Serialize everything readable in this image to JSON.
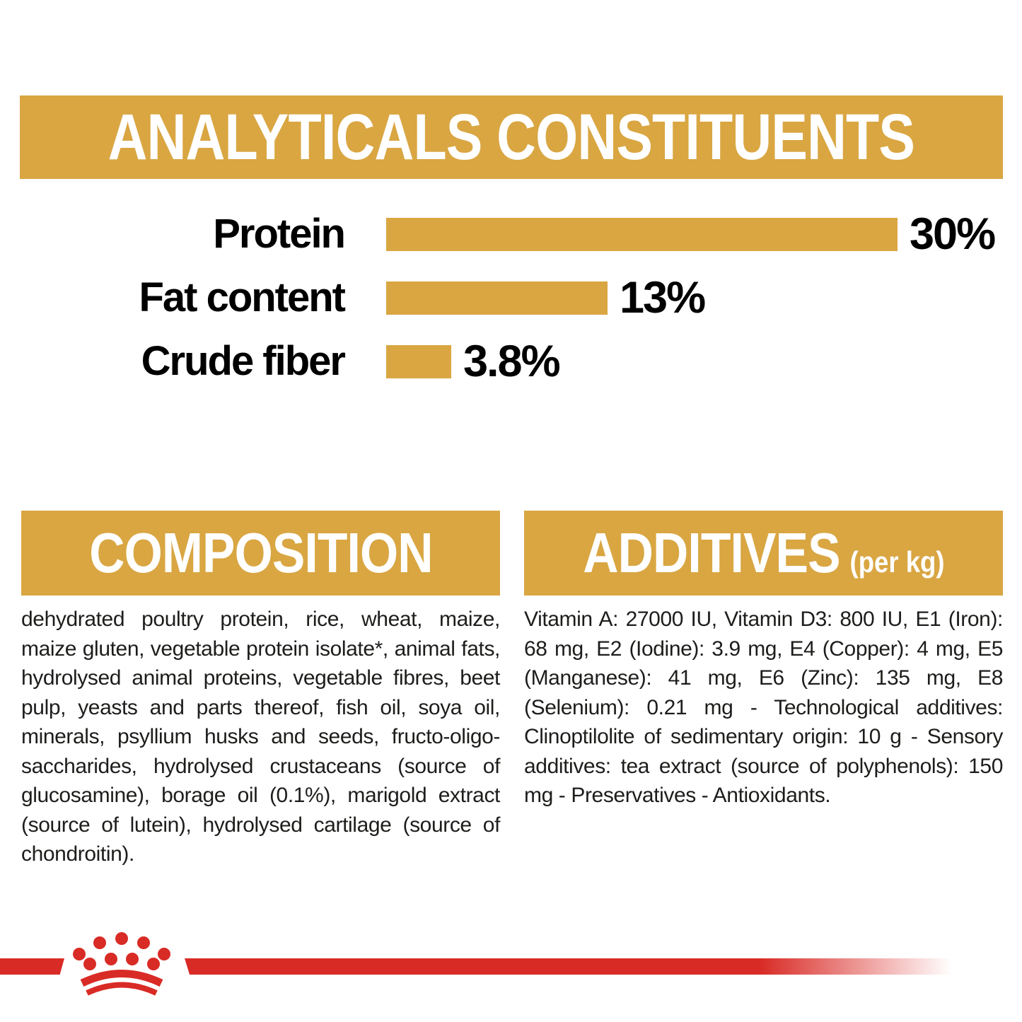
{
  "colors": {
    "gold": "#D9A642",
    "red": "#D92B26",
    "text_dark": "#1D1D1B",
    "banner_text": "#FFFFFF"
  },
  "header": {
    "title": "ANALYTICALS CONSTITUENTS"
  },
  "chart_data": {
    "type": "bar",
    "orientation": "horizontal",
    "title": "ANALYTICALS CONSTITUENTS",
    "categories": [
      "Protein",
      "Fat content",
      "Crude fiber"
    ],
    "values": [
      30,
      13,
      3.8
    ],
    "value_labels": [
      "30%",
      "13%",
      "3.8%"
    ],
    "xlim": [
      0,
      30
    ],
    "bar_color": "#D9A642",
    "grid": false,
    "legend": "none",
    "xlabel": "",
    "ylabel": ""
  },
  "sections": {
    "composition": {
      "title": "COMPOSITION",
      "body": "dehydrated poultry protein, rice, wheat, maize, maize gluten, vegetable protein isolate*, animal fats, hydrolysed animal proteins, vegetable fibres, beet pulp, yeasts and parts thereof, fish oil, soya oil, minerals, psyllium husks and seeds, fructo-oligo-saccharides, hydrolysed crustaceans (source of glucosamine), borage oil (0.1%), marigold extract (source of lutein), hydrolysed cartilage (source of chondroitin)."
    },
    "additives": {
      "title": "ADDITIVES",
      "unit": "(per kg)",
      "body": "Vitamin A: 27000 IU, Vitamin D3: 800 IU, E1 (Iron): 68 mg, E2 (Iodine): 3.9 mg, E4 (Copper): 4 mg, E5 (Manganese): 41 mg, E6 (Zinc): 135 mg, E8 (Selenium): 0.21 mg - Technological additives: Clinoptilolite of sedimentary origin: 10 g - Sensory additives: tea extract (source of polyphenols): 150 mg - Preservatives - Antioxidants."
    }
  },
  "footer": {
    "logo_icon": "royal-canin-crown-logo"
  }
}
